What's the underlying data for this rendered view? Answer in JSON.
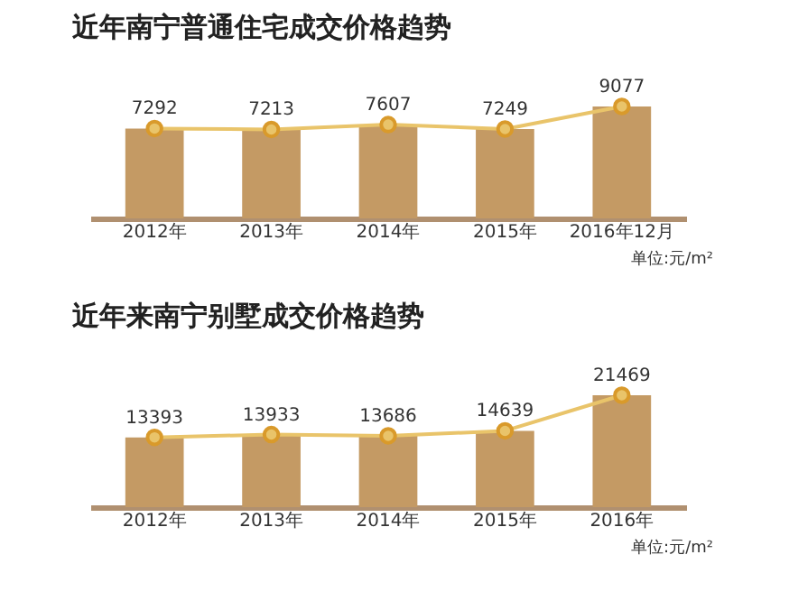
{
  "chart_data": [
    {
      "type": "bar",
      "title": "近年南宁普通住宅成交价格趋势",
      "categories": [
        "2012年",
        "2013年",
        "2014年",
        "2015年",
        "2016年12月"
      ],
      "series": [
        {
          "color": "#c49a64",
          "values": [
            7292,
            7213,
            7607,
            7249,
            9077
          ]
        },
        {
          "type": "line",
          "color": "#e9c46a",
          "values": [
            7292,
            7213,
            7607,
            7249,
            9077
          ],
          "value_labels": [
            "7292",
            "7213",
            "7607",
            "7249",
            "9077"
          ]
        }
      ],
      "marker": "circle",
      "tick_labels": "x",
      "grid": false,
      "annotations": [
        "单位:元/m²"
      ]
    },
    {
      "type": "bar",
      "title": "近年来南宁别墅成交价格趋势",
      "categories": [
        "2012年",
        "2013年",
        "2014年",
        "2015年",
        "2016年"
      ],
      "series": [
        {
          "color": "#c49a64",
          "values": [
            13393,
            13933,
            13686,
            14639,
            21469
          ]
        },
        {
          "type": "line",
          "color": "#e9c46a",
          "values": [
            13393,
            13933,
            13686,
            14639,
            21469
          ],
          "value_labels": [
            "13393",
            "13933",
            "13686",
            "14639",
            "21469"
          ]
        }
      ],
      "marker": "circle",
      "tick_labels": "x",
      "grid": false,
      "annotations": [
        "单位:元/m²"
      ]
    }
  ]
}
